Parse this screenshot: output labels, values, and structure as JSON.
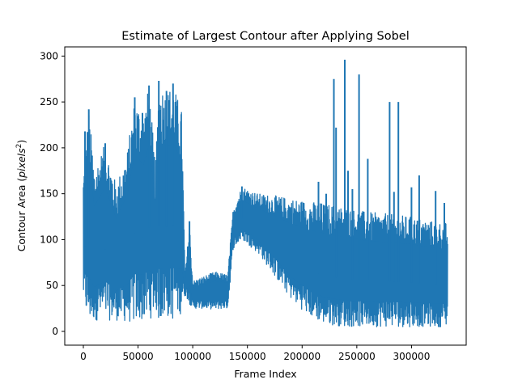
{
  "chart_data": {
    "type": "line",
    "title": "Estimate of Largest Contour after Applying Sobel",
    "xlabel": "Frame Index",
    "ylabel_prefix": "Contour Area (",
    "ylabel_var": "pixels",
    "ylabel_exp": "2",
    "ylabel_suffix": ")",
    "xlim": [
      -17000,
      350000
    ],
    "ylim": [
      -15,
      310
    ],
    "xticks": [
      0,
      50000,
      100000,
      150000,
      200000,
      250000,
      300000
    ],
    "xtick_labels": [
      "0",
      "50000",
      "100000",
      "150000",
      "200000",
      "250000",
      "300000"
    ],
    "yticks": [
      0,
      50,
      100,
      150,
      200,
      250,
      300
    ],
    "ytick_labels": [
      "0",
      "50",
      "100",
      "150",
      "200",
      "250",
      "300"
    ],
    "grid": false,
    "series": [
      {
        "color": "#1f77b4",
        "envelope": [
          {
            "x": 0,
            "low": 35,
            "high": 170
          },
          {
            "x": 3000,
            "low": 15,
            "high": 218
          },
          {
            "x": 5000,
            "low": 8,
            "high": 242
          },
          {
            "x": 10000,
            "low": 12,
            "high": 178
          },
          {
            "x": 20000,
            "low": 12,
            "high": 205
          },
          {
            "x": 30000,
            "low": 12,
            "high": 160
          },
          {
            "x": 40000,
            "low": 10,
            "high": 195
          },
          {
            "x": 47000,
            "low": 8,
            "high": 255
          },
          {
            "x": 55000,
            "low": 12,
            "high": 238
          },
          {
            "x": 60000,
            "low": 10,
            "high": 268
          },
          {
            "x": 66000,
            "low": 25,
            "high": 180
          },
          {
            "x": 69000,
            "low": 10,
            "high": 273
          },
          {
            "x": 76000,
            "low": 15,
            "high": 262
          },
          {
            "x": 82000,
            "low": 12,
            "high": 270
          },
          {
            "x": 90000,
            "low": 20,
            "high": 240
          },
          {
            "x": 93000,
            "low": 40,
            "high": 60
          },
          {
            "x": 97000,
            "low": 30,
            "high": 120
          },
          {
            "x": 100000,
            "low": 25,
            "high": 55
          },
          {
            "x": 110000,
            "low": 25,
            "high": 60
          },
          {
            "x": 120000,
            "low": 24,
            "high": 65
          },
          {
            "x": 132000,
            "low": 25,
            "high": 62
          },
          {
            "x": 137000,
            "low": 90,
            "high": 135
          },
          {
            "x": 145000,
            "low": 100,
            "high": 158
          },
          {
            "x": 160000,
            "low": 85,
            "high": 150
          },
          {
            "x": 175000,
            "low": 60,
            "high": 148
          },
          {
            "x": 190000,
            "low": 35,
            "high": 145
          },
          {
            "x": 205000,
            "low": 18,
            "high": 142
          },
          {
            "x": 220000,
            "low": 8,
            "high": 140
          },
          {
            "x": 240000,
            "low": 5,
            "high": 135
          },
          {
            "x": 260000,
            "low": 5,
            "high": 130
          },
          {
            "x": 280000,
            "low": 5,
            "high": 128
          },
          {
            "x": 300000,
            "low": 5,
            "high": 125
          },
          {
            "x": 320000,
            "low": 5,
            "high": 120
          },
          {
            "x": 333000,
            "low": 5,
            "high": 118
          }
        ],
        "spikes": [
          {
            "x": 1500,
            "y": 218
          },
          {
            "x": 5000,
            "y": 242
          },
          {
            "x": 20000,
            "y": 205
          },
          {
            "x": 47000,
            "y": 255
          },
          {
            "x": 54000,
            "y": 238
          },
          {
            "x": 60000,
            "y": 268
          },
          {
            "x": 69000,
            "y": 273
          },
          {
            "x": 76000,
            "y": 262
          },
          {
            "x": 82000,
            "y": 270
          },
          {
            "x": 97000,
            "y": 120
          },
          {
            "x": 145000,
            "y": 158
          },
          {
            "x": 215000,
            "y": 163
          },
          {
            "x": 222000,
            "y": 150
          },
          {
            "x": 229000,
            "y": 275
          },
          {
            "x": 231000,
            "y": 222
          },
          {
            "x": 239000,
            "y": 296
          },
          {
            "x": 242000,
            "y": 175
          },
          {
            "x": 246000,
            "y": 155
          },
          {
            "x": 252000,
            "y": 280
          },
          {
            "x": 260000,
            "y": 188
          },
          {
            "x": 280000,
            "y": 250
          },
          {
            "x": 284000,
            "y": 152
          },
          {
            "x": 288000,
            "y": 250
          },
          {
            "x": 300000,
            "y": 157
          },
          {
            "x": 307000,
            "y": 170
          },
          {
            "x": 322000,
            "y": 153
          },
          {
            "x": 330000,
            "y": 140
          }
        ]
      }
    ]
  }
}
